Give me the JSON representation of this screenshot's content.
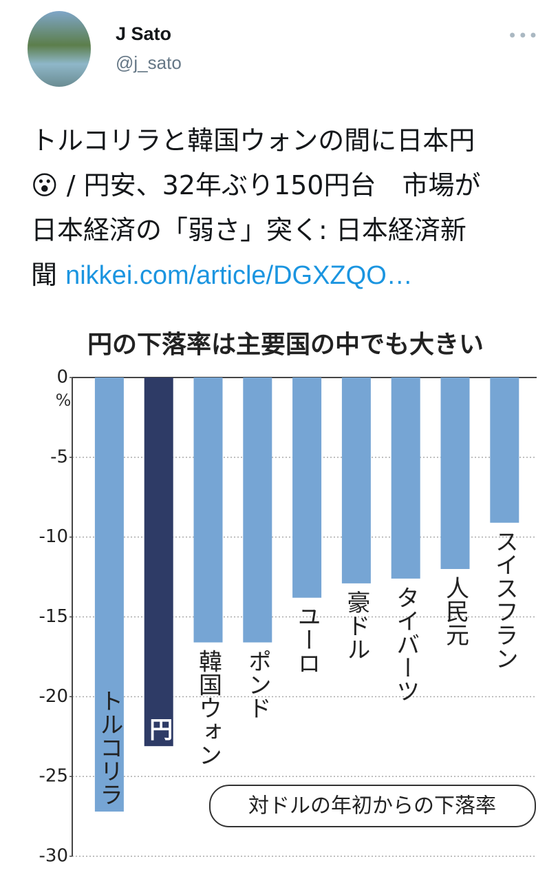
{
  "tweet": {
    "name": "J Sato",
    "handle": "@j_sato",
    "lines": [
      "トルコリラと韓国ウォンの間に日本円",
      "😮 / 円安、32年ぶり150円台　市場が",
      "日本経済の「弱さ」突く: 日本経済新",
      "聞"
    ],
    "link": "nikkei.com/article/DGXZQO…"
  },
  "chart_data": {
    "type": "bar",
    "title": "円の下落率は主要国の中でも大きい",
    "y_unit": "%",
    "annotation": "対ドルの年初からの下落率",
    "categories": [
      "トルコリラ",
      "円",
      "韓国ウォン",
      "ポンド",
      "ユーロ",
      "豪ドル",
      "タイバーツ",
      "人民元",
      "スイスフラン"
    ],
    "values": [
      -27.2,
      -23.1,
      -16.6,
      -16.6,
      -13.8,
      -12.9,
      -12.6,
      -12.0,
      -9.1
    ],
    "colors": [
      "#76a5d4",
      "#2e3b66",
      "#76a5d4",
      "#76a5d4",
      "#76a5d4",
      "#76a5d4",
      "#76a5d4",
      "#76a5d4",
      "#76a5d4"
    ],
    "ylim": [
      -30,
      0
    ],
    "yticks": [
      0,
      -5,
      -10,
      -15,
      -20,
      -25,
      -30
    ],
    "grid": true
  }
}
